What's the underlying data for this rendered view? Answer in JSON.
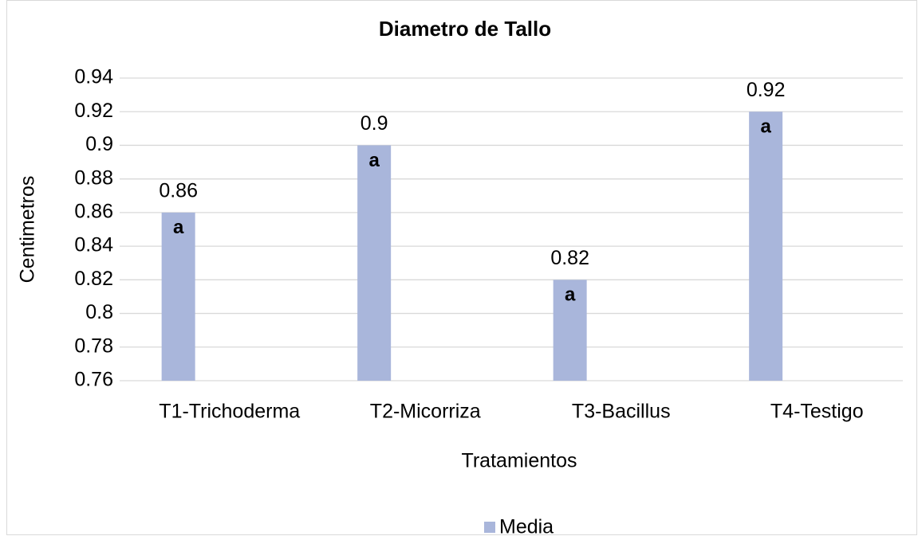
{
  "chart_data": {
    "type": "bar",
    "title": "Diametro de Tallo",
    "x_label": "Tratamientos",
    "y_label": "Centimetros",
    "categories": [
      "T1-Trichoderma",
      "T2-Micorriza",
      "T3-Bacillus",
      "T4-Testigo"
    ],
    "series": [
      {
        "name": "Media",
        "color": "#a9b6db",
        "values": [
          0.86,
          0.9,
          0.82,
          0.92
        ]
      }
    ],
    "group_letters": [
      "a",
      "a",
      "a",
      "a"
    ],
    "ylim": [
      0.76,
      0.94
    ],
    "yticks": [
      0.76,
      0.78,
      0.8,
      0.82,
      0.84,
      0.86,
      0.88,
      0.9,
      0.92,
      0.94
    ],
    "grid": true,
    "legend": "bottom"
  }
}
